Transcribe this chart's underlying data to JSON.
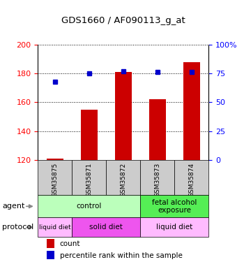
{
  "title": "GDS1660 / AF090113_g_at",
  "samples": [
    "GSM35875",
    "GSM35871",
    "GSM35872",
    "GSM35873",
    "GSM35874"
  ],
  "counts": [
    121,
    155,
    181,
    162,
    188
  ],
  "percentile_ranks": [
    68,
    75,
    77,
    76,
    76
  ],
  "ylim_left": [
    120,
    200
  ],
  "ylim_right": [
    0,
    100
  ],
  "yticks_left": [
    120,
    140,
    160,
    180,
    200
  ],
  "yticks_right": [
    0,
    25,
    50,
    75,
    100
  ],
  "ytick_labels_right": [
    "0",
    "25",
    "50",
    "75",
    "100%"
  ],
  "bar_color": "#cc0000",
  "dot_color": "#0000cc",
  "agent_labels": [
    {
      "text": "control",
      "start": 0,
      "end": 3,
      "color": "#bbffbb"
    },
    {
      "text": "fetal alcohol\nexposure",
      "start": 3,
      "end": 5,
      "color": "#55ee55"
    }
  ],
  "protocol_labels": [
    {
      "text": "liquid diet",
      "start": 0,
      "end": 1,
      "color": "#ffbbff"
    },
    {
      "text": "solid diet",
      "start": 1,
      "end": 3,
      "color": "#ee55ee"
    },
    {
      "text": "liquid diet",
      "start": 3,
      "end": 5,
      "color": "#ffbbff"
    }
  ],
  "legend_items": [
    {
      "color": "#cc0000",
      "label": "count"
    },
    {
      "color": "#0000cc",
      "label": "percentile rank within the sample"
    }
  ],
  "sample_box_color": "#cccccc",
  "bar_width": 0.5
}
